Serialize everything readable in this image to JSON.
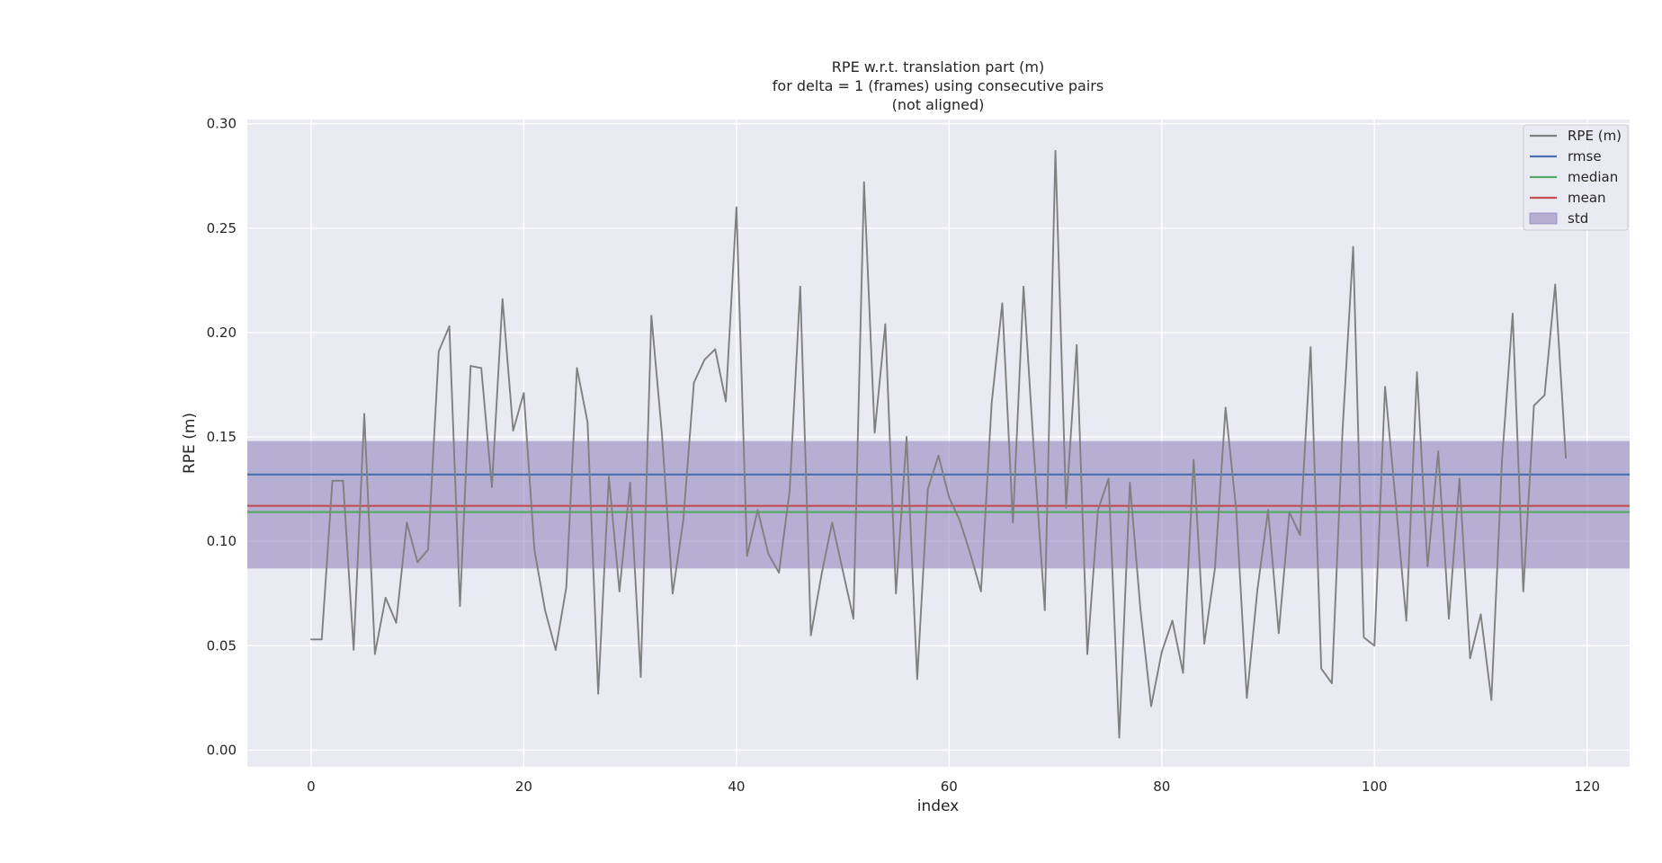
{
  "chart_data": {
    "type": "line",
    "title_lines": [
      "RPE w.r.t. translation part (m)",
      "for delta = 1 (frames) using consecutive pairs",
      "(not aligned)"
    ],
    "xlabel": "index",
    "ylabel": "RPE (m)",
    "xlim": [
      -6,
      124
    ],
    "ylim": [
      -0.008,
      0.302
    ],
    "xticks": [
      0,
      20,
      40,
      60,
      80,
      100,
      120
    ],
    "yticks": [
      0.0,
      0.05,
      0.1,
      0.15,
      0.2,
      0.25,
      0.3
    ],
    "xtick_labels": [
      "0",
      "20",
      "40",
      "60",
      "80",
      "100",
      "120"
    ],
    "ytick_labels": [
      "0.00",
      "0.05",
      "0.10",
      "0.15",
      "0.20",
      "0.25",
      "0.30"
    ],
    "grid": true,
    "legend_position": "top-right",
    "series": [
      {
        "name": "RPE (m)",
        "color": "#808080",
        "x": [
          0,
          1,
          2,
          3,
          4,
          5,
          6,
          7,
          8,
          9,
          10,
          11,
          12,
          13,
          14,
          15,
          16,
          17,
          18,
          19,
          20,
          21,
          22,
          23,
          24,
          25,
          26,
          27,
          28,
          29,
          30,
          31,
          32,
          33,
          34,
          35,
          36,
          37,
          38,
          39,
          40,
          41,
          42,
          43,
          44,
          45,
          46,
          47,
          48,
          49,
          50,
          51,
          52,
          53,
          54,
          55,
          56,
          57,
          58,
          59,
          60,
          61,
          62,
          63,
          64,
          65,
          66,
          67,
          68,
          69,
          70,
          71,
          72,
          73,
          74,
          75,
          76,
          77,
          78,
          79,
          80,
          81,
          82,
          83,
          84,
          85,
          86,
          87,
          88,
          89,
          90,
          91,
          92,
          93,
          94,
          95,
          96,
          97,
          98,
          99,
          100,
          101,
          102,
          103,
          104,
          105,
          106,
          107,
          108,
          109,
          110,
          111,
          112,
          113,
          114,
          115,
          116,
          117,
          118
        ],
        "y": [
          0.053,
          0.053,
          0.129,
          0.129,
          0.048,
          0.161,
          0.046,
          0.073,
          0.061,
          0.109,
          0.09,
          0.096,
          0.191,
          0.203,
          0.069,
          0.184,
          0.183,
          0.126,
          0.216,
          0.153,
          0.171,
          0.096,
          0.067,
          0.048,
          0.078,
          0.183,
          0.157,
          0.027,
          0.131,
          0.076,
          0.128,
          0.035,
          0.208,
          0.151,
          0.075,
          0.11,
          0.176,
          0.187,
          0.192,
          0.167,
          0.26,
          0.093,
          0.115,
          0.094,
          0.085,
          0.124,
          0.222,
          0.055,
          0.084,
          0.109,
          0.086,
          0.063,
          0.272,
          0.152,
          0.204,
          0.075,
          0.15,
          0.034,
          0.125,
          0.141,
          0.121,
          0.11,
          0.094,
          0.076,
          0.166,
          0.214,
          0.109,
          0.222,
          0.141,
          0.067,
          0.287,
          0.116,
          0.194,
          0.046,
          0.115,
          0.13,
          0.006,
          0.128,
          0.067,
          0.021,
          0.047,
          0.062,
          0.037,
          0.139,
          0.051,
          0.087,
          0.164,
          0.115,
          0.025,
          0.077,
          0.115,
          0.056,
          0.114,
          0.103,
          0.193,
          0.039,
          0.032,
          0.153,
          0.241,
          0.054,
          0.05,
          0.174,
          0.119,
          0.062,
          0.181,
          0.088,
          0.143,
          0.063,
          0.13,
          0.044,
          0.065,
          0.024,
          0.139,
          0.209,
          0.076,
          0.165,
          0.17,
          0.223,
          0.14
        ]
      }
    ],
    "statistics": [
      {
        "name": "rmse",
        "color": "#4c72b0",
        "value": 0.132
      },
      {
        "name": "median",
        "color": "#55a868",
        "value": 0.114
      },
      {
        "name": "mean",
        "color": "#c44e52",
        "value": 0.117
      }
    ],
    "std_band": {
      "name": "std",
      "color": "#8172b3",
      "lower": 0.087,
      "upper": 0.148
    },
    "colors": {
      "plot_background": "#eaeaf2",
      "grid": "#ffffff",
      "legend_background": "#eaeaf2",
      "legend_border": "#cccccc"
    }
  }
}
